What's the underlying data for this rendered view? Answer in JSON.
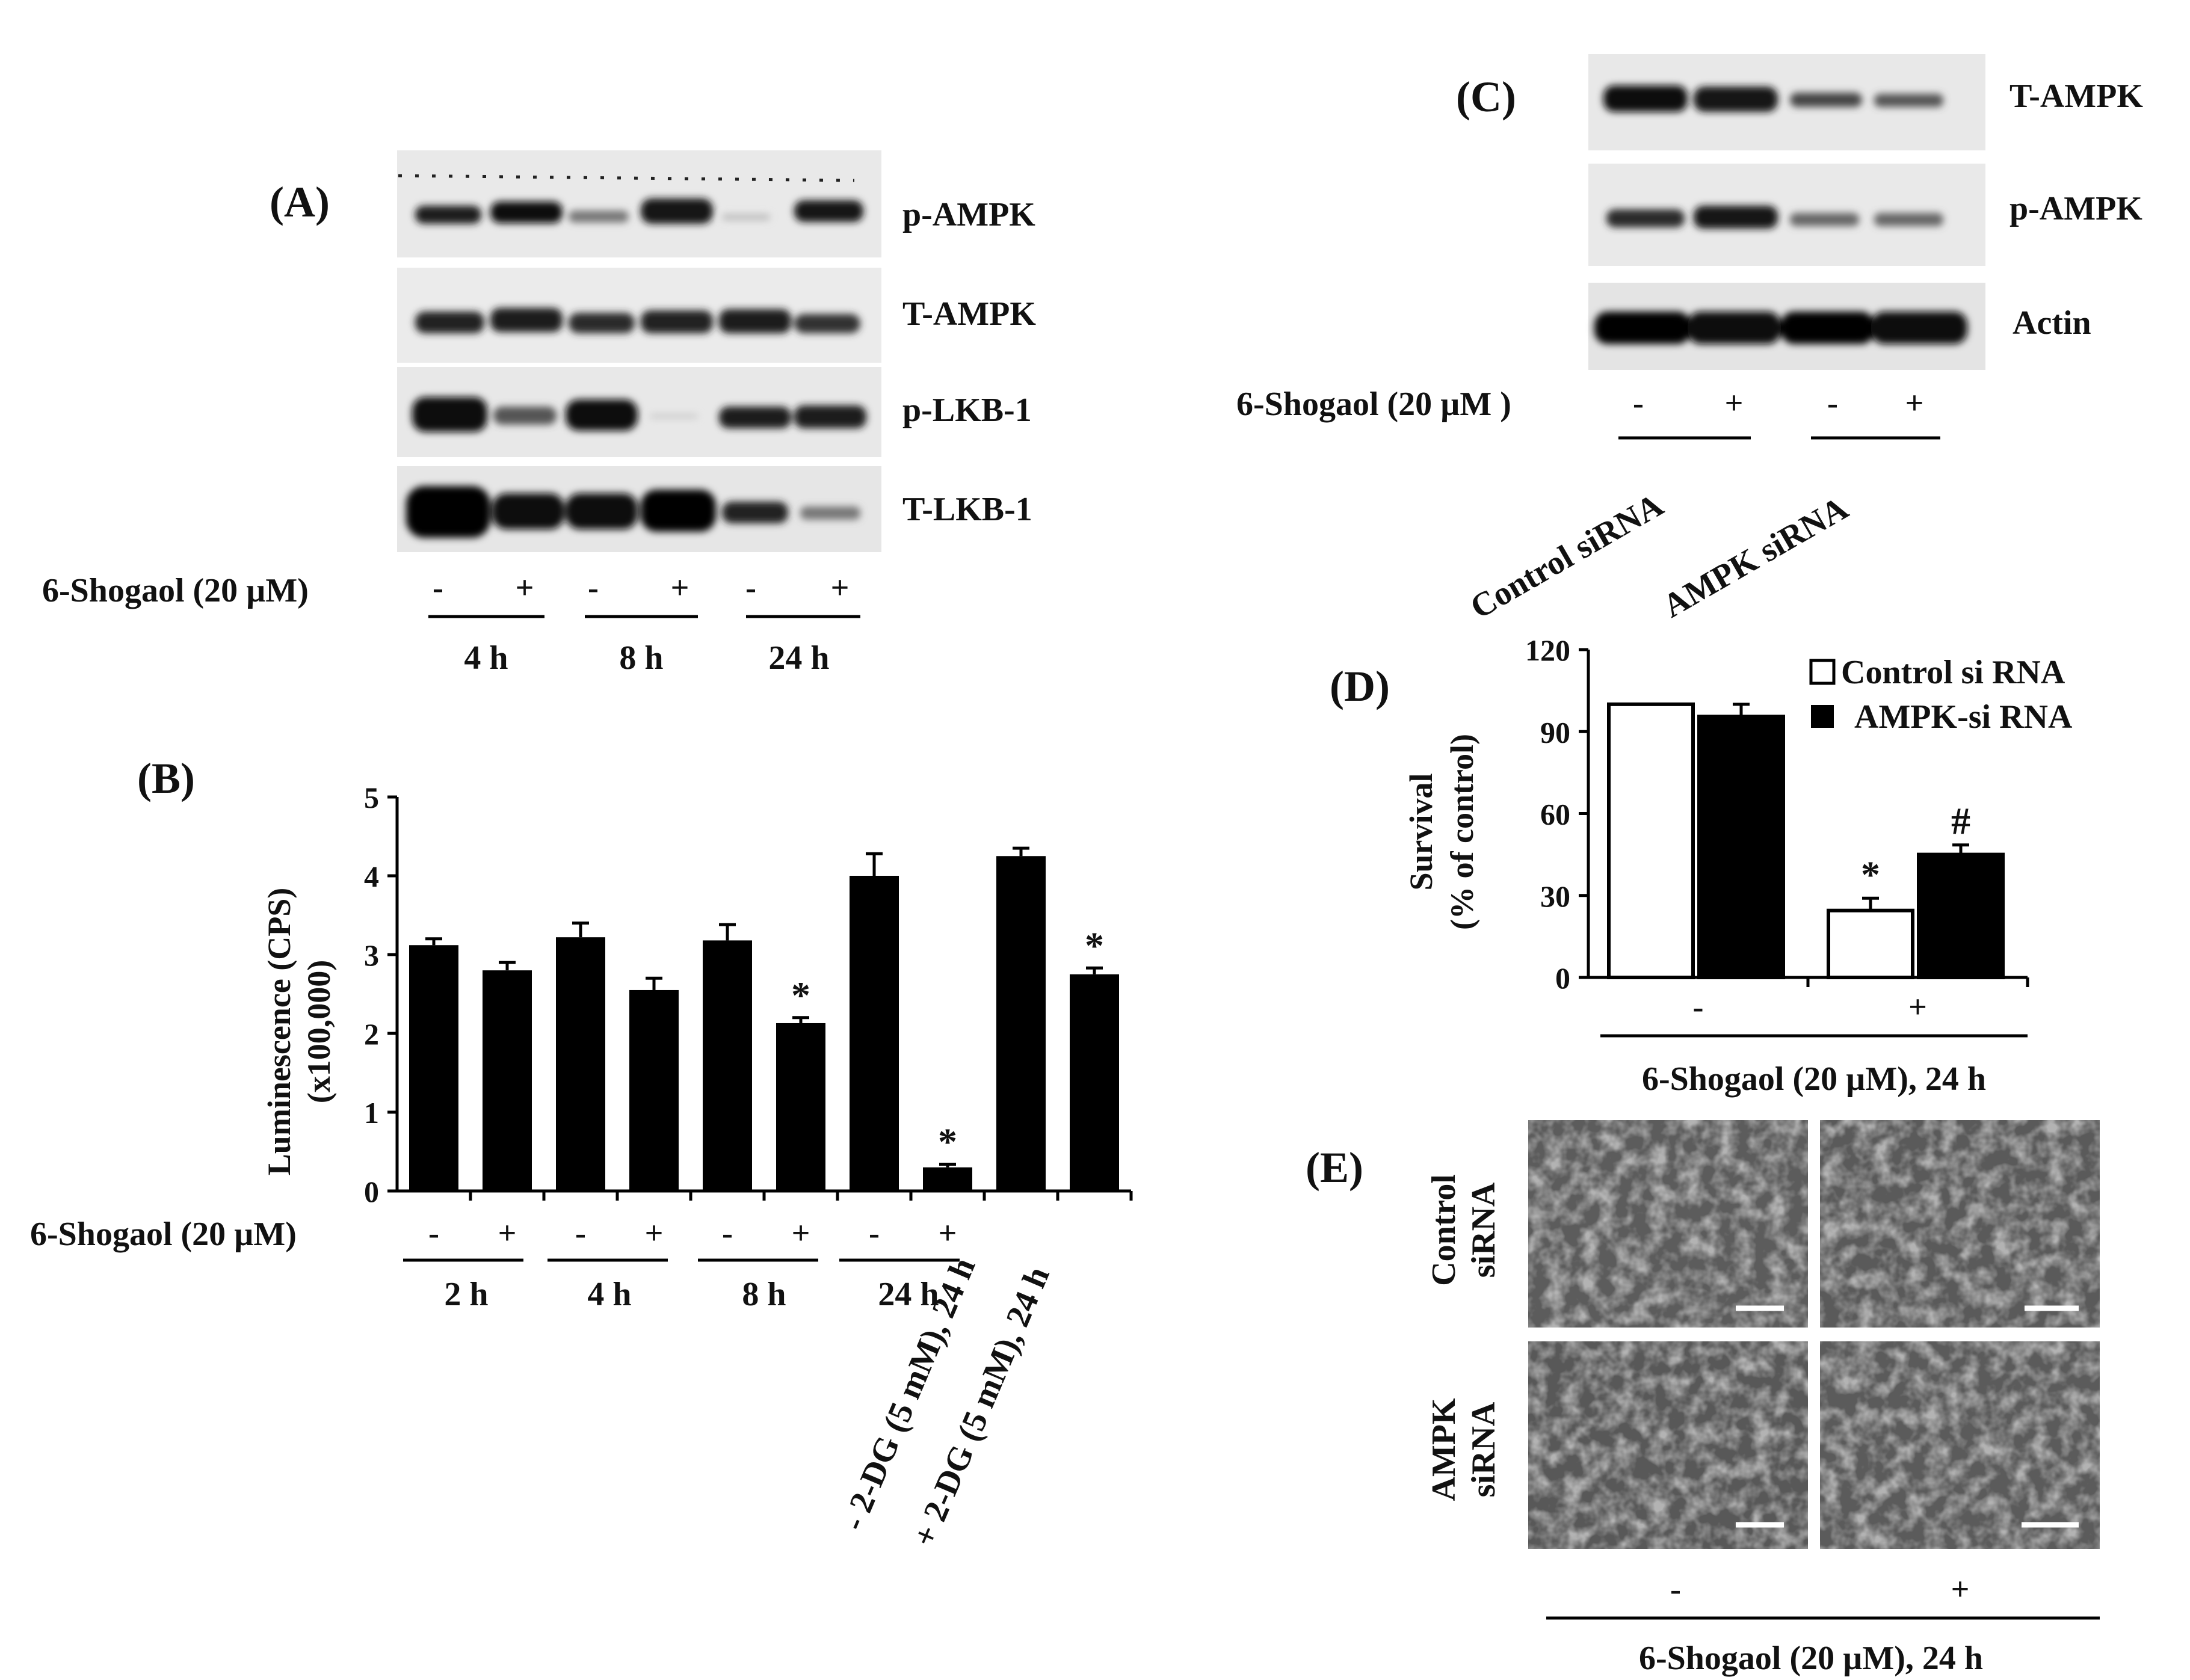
{
  "panels": {
    "A": "(A)",
    "B": "(B)",
    "C": "(C)",
    "D": "(D)",
    "E": "(E)"
  },
  "blot_A": {
    "bands": [
      "p-AMPK",
      "T-AMPK",
      "p-LKB-1",
      "T-LKB-1"
    ],
    "treatment_label": "6-Shogaol (20 µM)",
    "signs": [
      "-",
      "+",
      "-",
      "+",
      "-",
      "+"
    ],
    "groups": [
      "4 h",
      "8 h",
      "24 h"
    ]
  },
  "blot_C": {
    "bands": [
      "T-AMPK",
      "p-AMPK",
      "Actin"
    ],
    "treatment_label": "6-Shogaol (20 µM )",
    "signs": [
      "-",
      "+",
      "-",
      "+"
    ],
    "groups": [
      "Control siRNA",
      "AMPK siRNA"
    ]
  },
  "micrographs_E": {
    "rows": [
      {
        "line1": "Control",
        "line2": "siRNA"
      },
      {
        "line1": "AMPK",
        "line2": "siRNA"
      }
    ],
    "signs": [
      "-",
      "+"
    ],
    "treatment_label": "6-Shogaol (20 µM), 24 h"
  },
  "chart_data": [
    {
      "type": "bar",
      "panel": "B",
      "ylabel_line1": "Luminescence (CPS)",
      "ylabel_line2": "(x100,000)",
      "ylim": [
        0,
        5
      ],
      "yticks": [
        "0",
        "1",
        "2",
        "3",
        "4",
        "5"
      ],
      "treatment_label": "6-Shogaol (20 µM)",
      "bars": [
        {
          "sign": "-",
          "value": 3.12,
          "err": 0.08,
          "sig": ""
        },
        {
          "sign": "+",
          "value": 2.8,
          "err": 0.1,
          "sig": ""
        },
        {
          "sign": "-",
          "value": 3.22,
          "err": 0.18,
          "sig": ""
        },
        {
          "sign": "+",
          "value": 2.55,
          "err": 0.15,
          "sig": ""
        },
        {
          "sign": "-",
          "value": 3.18,
          "err": 0.2,
          "sig": ""
        },
        {
          "sign": "+",
          "value": 2.13,
          "err": 0.07,
          "sig": "*"
        },
        {
          "sign": "-",
          "value": 4.0,
          "err": 0.28,
          "sig": ""
        },
        {
          "sign": "+",
          "value": 0.3,
          "err": 0.04,
          "sig": "*"
        },
        {
          "sign": "",
          "value": 4.25,
          "err": 0.1,
          "sig": ""
        },
        {
          "sign": "",
          "value": 2.75,
          "err": 0.08,
          "sig": "*"
        }
      ],
      "groups": [
        "2 h",
        "4 h",
        "8 h",
        "24 h"
      ],
      "rotated_labels": [
        "- 2-DG (5 mM), 24 h",
        "+ 2-DG (5 mM), 24 h"
      ]
    },
    {
      "type": "bar",
      "panel": "D",
      "ylabel_line1": "Survival",
      "ylabel_line2": "(% of control)",
      "ylim": [
        0,
        120
      ],
      "yticks": [
        "0",
        "30",
        "60",
        "90",
        "120"
      ],
      "series": [
        {
          "name": "Control si RNA",
          "values": [
            100,
            24.5
          ],
          "errors": [
            0,
            4.5
          ],
          "color": "#ffffff"
        },
        {
          "name": "AMPK-si RNA",
          "values": [
            95.5,
            45
          ],
          "errors": [
            4.5,
            3.5
          ],
          "color": "#000000"
        }
      ],
      "categories": [
        "-",
        "+"
      ],
      "significance": {
        "control_plus": "*",
        "ampk_plus": "#"
      },
      "xlabel": "6-Shogaol (20 µM), 24 h"
    }
  ]
}
